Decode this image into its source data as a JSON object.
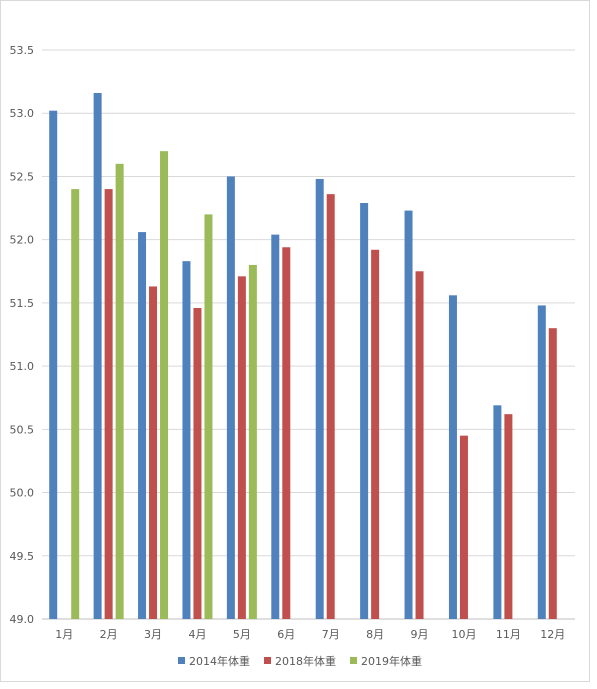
{
  "chart_data": {
    "type": "bar",
    "categories": [
      "1月",
      "2月",
      "3月",
      "4月",
      "5月",
      "6月",
      "7月",
      "8月",
      "9月",
      "10月",
      "11月",
      "12月"
    ],
    "series": [
      {
        "name": "2014年体重",
        "color": "#4f81bd",
        "values": [
          53.02,
          53.16,
          52.06,
          51.83,
          52.5,
          52.04,
          52.48,
          52.29,
          52.23,
          51.56,
          50.69,
          51.48
        ]
      },
      {
        "name": "2018年体重",
        "color": "#c0504d",
        "values": [
          null,
          52.4,
          51.63,
          51.46,
          51.71,
          51.94,
          52.36,
          51.92,
          51.75,
          50.45,
          50.62,
          51.3
        ]
      },
      {
        "name": "2019年体重",
        "color": "#9bbb59",
        "values": [
          52.4,
          52.6,
          52.7,
          52.2,
          51.8,
          null,
          null,
          null,
          null,
          null,
          null,
          null
        ]
      }
    ],
    "ylim": [
      49.0,
      53.5
    ],
    "yticks": [
      "49.0",
      "49.5",
      "50.0",
      "50.5",
      "51.0",
      "51.5",
      "52.0",
      "52.5",
      "53.0",
      "53.5"
    ],
    "grid": true,
    "legend_position": "bottom",
    "title": "",
    "xlabel": "",
    "ylabel": ""
  }
}
